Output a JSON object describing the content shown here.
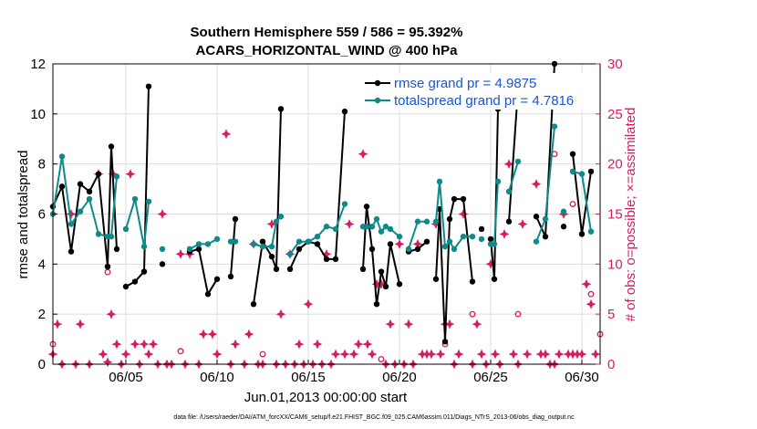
{
  "chart_data": {
    "type": "line",
    "title_line1": "Southern Hemisphere 559 / 586 = 95.392%",
    "title_line2": "ACARS_HORIZONTAL_WIND @ 400 hPa",
    "xlabel": "Jun.01,2013 00:00:00 start",
    "ylabel_left": "rmse and totalspread",
    "ylabel_right": "# of obs: o=possible; ×=assimilated",
    "xlim": [
      1,
      31
    ],
    "ylim_left": [
      0,
      12
    ],
    "ylim_right": [
      0,
      30
    ],
    "xticks": [
      5,
      10,
      15,
      20,
      25,
      30
    ],
    "xtick_labels": [
      "06/05",
      "06/10",
      "06/15",
      "06/20",
      "06/25",
      "06/30"
    ],
    "yticks_left": [
      0,
      2,
      4,
      6,
      8,
      10,
      12
    ],
    "yticks_right": [
      0,
      5,
      10,
      15,
      20,
      25,
      30
    ],
    "grid": true,
    "legend": {
      "position": "top-right",
      "entries": [
        "rmse grand pr = 4.9875",
        "totalspread grand pr = 4.7816"
      ]
    },
    "colors": {
      "rmse": "#000000",
      "spread": "#0f8a8a",
      "obs": "#d81b60",
      "right_axis": "#d81b60"
    },
    "series": [
      {
        "name": "rmse grand pr = 4.9875",
        "points": [
          [
            1.0,
            6.3
          ],
          [
            1.5,
            7.1
          ],
          [
            2.0,
            4.5
          ],
          [
            2.5,
            7.2
          ],
          [
            3.0,
            6.9
          ],
          [
            3.5,
            7.6
          ],
          [
            4.0,
            3.9
          ],
          [
            4.2,
            8.7
          ],
          [
            4.5,
            4.6
          ],
          [
            4.75,
            null
          ],
          [
            5.0,
            3.1
          ],
          [
            5.5,
            3.3
          ],
          [
            6.0,
            3.7
          ],
          [
            6.25,
            11.1
          ],
          [
            6.5,
            null
          ],
          [
            7.0,
            4.0
          ],
          [
            7.5,
            null
          ],
          [
            8.5,
            4.5
          ],
          [
            9.0,
            4.6
          ],
          [
            9.5,
            2.8
          ],
          [
            10.0,
            3.4
          ],
          [
            10.25,
            null
          ],
          [
            10.75,
            3.5
          ],
          [
            11.0,
            5.8
          ],
          [
            11.5,
            null
          ],
          [
            12.0,
            2.4
          ],
          [
            12.5,
            4.9
          ],
          [
            13.0,
            4.3
          ],
          [
            13.25,
            3.8
          ],
          [
            13.5,
            10.2
          ],
          [
            13.75,
            null
          ],
          [
            14.0,
            3.8
          ],
          [
            14.5,
            4.6
          ],
          [
            15.0,
            4.9
          ],
          [
            15.5,
            4.8
          ],
          [
            16.0,
            4.2
          ],
          [
            16.5,
            4.2
          ],
          [
            17.0,
            10.1
          ],
          [
            17.5,
            null
          ],
          [
            18.0,
            3.8
          ],
          [
            18.2,
            6.3
          ],
          [
            18.5,
            4.6
          ],
          [
            18.75,
            2.4
          ],
          [
            19.0,
            3.7
          ],
          [
            19.25,
            3.1
          ],
          [
            19.5,
            4.8
          ],
          [
            20.0,
            3.2
          ],
          [
            20.25,
            null
          ],
          [
            20.5,
            4.5
          ],
          [
            21.0,
            4.6
          ],
          [
            21.5,
            4.9
          ],
          [
            21.75,
            null
          ],
          [
            22.0,
            3.4
          ],
          [
            22.2,
            6.2
          ],
          [
            22.5,
            0.9
          ],
          [
            22.75,
            5.8
          ],
          [
            23.0,
            6.6
          ],
          [
            23.5,
            6.6
          ],
          [
            24.0,
            3.3
          ],
          [
            24.25,
            null
          ],
          [
            24.5,
            5.4
          ],
          [
            24.75,
            null
          ],
          [
            25.0,
            5.0
          ],
          [
            25.2,
            3.4
          ],
          [
            25.4,
            10.2
          ],
          [
            25.6,
            null
          ],
          [
            26.0,
            5.7
          ],
          [
            26.5,
            11.0
          ],
          [
            27.0,
            null
          ],
          [
            27.5,
            5.9
          ],
          [
            28.0,
            5.1
          ],
          [
            28.5,
            12.0
          ],
          [
            28.75,
            null
          ],
          [
            29.0,
            5.5
          ],
          [
            29.25,
            null
          ],
          [
            29.5,
            8.4
          ],
          [
            30.0,
            5.2
          ],
          [
            30.5,
            7.7
          ]
        ]
      },
      {
        "name": "totalspread grand pr = 4.7816",
        "points": [
          [
            1.0,
            6.0
          ],
          [
            1.5,
            8.3
          ],
          [
            2.0,
            5.6
          ],
          [
            2.5,
            6.1
          ],
          [
            3.0,
            6.6
          ],
          [
            3.5,
            5.2
          ],
          [
            4.0,
            5.1
          ],
          [
            4.2,
            5.1
          ],
          [
            4.5,
            7.5
          ],
          [
            4.75,
            null
          ],
          [
            5.0,
            5.4
          ],
          [
            5.5,
            6.6
          ],
          [
            6.0,
            4.7
          ],
          [
            6.25,
            6.5
          ],
          [
            6.5,
            null
          ],
          [
            7.0,
            4.6
          ],
          [
            7.5,
            null
          ],
          [
            8.5,
            4.6
          ],
          [
            9.0,
            4.8
          ],
          [
            9.5,
            4.8
          ],
          [
            10.0,
            5.0
          ],
          [
            10.25,
            null
          ],
          [
            10.75,
            4.9
          ],
          [
            11.0,
            4.9
          ],
          [
            11.5,
            null
          ],
          [
            12.0,
            4.8
          ],
          [
            12.5,
            4.7
          ],
          [
            13.0,
            4.7
          ],
          [
            13.25,
            5.7
          ],
          [
            13.5,
            5.9
          ],
          [
            13.75,
            null
          ],
          [
            14.0,
            4.4
          ],
          [
            14.5,
            4.9
          ],
          [
            15.0,
            4.9
          ],
          [
            15.5,
            5.1
          ],
          [
            16.0,
            5.5
          ],
          [
            16.5,
            5.4
          ],
          [
            17.0,
            6.4
          ],
          [
            17.5,
            null
          ],
          [
            18.0,
            5.5
          ],
          [
            18.2,
            5.5
          ],
          [
            18.5,
            5.5
          ],
          [
            18.75,
            5.8
          ],
          [
            19.0,
            5.3
          ],
          [
            19.25,
            5.5
          ],
          [
            19.5,
            5.4
          ],
          [
            20.0,
            5.1
          ],
          [
            20.25,
            null
          ],
          [
            20.5,
            4.6
          ],
          [
            21.0,
            5.7
          ],
          [
            21.5,
            5.7
          ],
          [
            21.75,
            null
          ],
          [
            22.0,
            5.7
          ],
          [
            22.2,
            7.3
          ],
          [
            22.5,
            4.7
          ],
          [
            22.75,
            4.9
          ],
          [
            23.0,
            4.6
          ],
          [
            23.5,
            5.1
          ],
          [
            24.0,
            5.1
          ],
          [
            24.25,
            null
          ],
          [
            24.5,
            5.0
          ],
          [
            24.75,
            null
          ],
          [
            25.0,
            4.8
          ],
          [
            25.2,
            4.8
          ],
          [
            25.4,
            7.3
          ],
          [
            25.6,
            null
          ],
          [
            26.0,
            6.9
          ],
          [
            26.5,
            8.1
          ],
          [
            27.0,
            null
          ],
          [
            27.5,
            4.9
          ],
          [
            28.0,
            5.8
          ],
          [
            28.5,
            9.5
          ],
          [
            28.75,
            null
          ],
          [
            29.0,
            6.1
          ],
          [
            29.25,
            null
          ],
          [
            29.5,
            7.7
          ],
          [
            30.0,
            7.6
          ],
          [
            30.5,
            5.3
          ]
        ]
      }
    ],
    "obs_possible": [
      [
        1.0,
        2
      ],
      [
        4.0,
        9.2
      ],
      [
        8.0,
        1.3
      ],
      [
        12.5,
        1
      ],
      [
        19.0,
        0.5
      ],
      [
        22.5,
        2
      ],
      [
        24.0,
        5
      ],
      [
        26.5,
        5
      ],
      [
        28.5,
        21
      ],
      [
        29.5,
        16
      ],
      [
        30.5,
        7
      ],
      [
        31.0,
        3
      ]
    ],
    "obs_assimilated": [
      [
        1.0,
        1
      ],
      [
        1.25,
        4
      ],
      [
        1.5,
        0
      ],
      [
        2.0,
        15
      ],
      [
        2.25,
        0
      ],
      [
        2.5,
        4
      ],
      [
        3.0,
        0
      ],
      [
        3.5,
        19
      ],
      [
        3.75,
        1
      ],
      [
        4.0,
        0.2
      ],
      [
        4.2,
        5
      ],
      [
        4.3,
        19
      ],
      [
        4.5,
        2
      ],
      [
        4.75,
        0
      ],
      [
        5.0,
        1
      ],
      [
        5.25,
        19
      ],
      [
        5.5,
        2
      ],
      [
        5.75,
        0
      ],
      [
        6.0,
        2
      ],
      [
        6.25,
        1
      ],
      [
        6.5,
        2
      ],
      [
        6.75,
        0
      ],
      [
        7.0,
        15
      ],
      [
        7.25,
        0
      ],
      [
        7.5,
        0
      ],
      [
        8.0,
        11
      ],
      [
        8.25,
        0
      ],
      [
        8.5,
        11
      ],
      [
        9.0,
        0
      ],
      [
        9.25,
        3
      ],
      [
        9.75,
        3
      ],
      [
        10.0,
        1
      ],
      [
        10.5,
        23
      ],
      [
        10.75,
        0
      ],
      [
        11.0,
        2
      ],
      [
        11.5,
        0
      ],
      [
        11.75,
        3
      ],
      [
        12.0,
        12
      ],
      [
        12.25,
        0
      ],
      [
        12.5,
        0
      ],
      [
        13.0,
        14
      ],
      [
        13.25,
        0
      ],
      [
        13.5,
        5
      ],
      [
        13.75,
        0
      ],
      [
        14.0,
        11
      ],
      [
        14.25,
        0
      ],
      [
        14.5,
        2
      ],
      [
        14.75,
        0
      ],
      [
        15.0,
        6
      ],
      [
        15.25,
        0
      ],
      [
        15.5,
        2
      ],
      [
        15.75,
        0
      ],
      [
        16.0,
        11
      ],
      [
        16.25,
        0
      ],
      [
        16.5,
        1
      ],
      [
        17.0,
        1
      ],
      [
        17.25,
        14
      ],
      [
        17.5,
        1
      ],
      [
        17.75,
        2
      ],
      [
        18.0,
        21
      ],
      [
        18.25,
        2
      ],
      [
        18.5,
        1
      ],
      [
        18.75,
        8
      ],
      [
        19.0,
        8
      ],
      [
        19.25,
        0
      ],
      [
        19.5,
        4
      ],
      [
        19.75,
        0
      ],
      [
        20.0,
        12
      ],
      [
        20.25,
        0
      ],
      [
        20.5,
        4
      ],
      [
        20.75,
        0
      ],
      [
        21.0,
        12
      ],
      [
        21.25,
        1
      ],
      [
        21.5,
        1
      ],
      [
        21.75,
        1
      ],
      [
        22.0,
        14
      ],
      [
        22.25,
        1
      ],
      [
        22.5,
        4
      ],
      [
        22.75,
        4
      ],
      [
        23.0,
        0
      ],
      [
        23.25,
        1
      ],
      [
        23.5,
        15
      ],
      [
        24.0,
        0
      ],
      [
        24.25,
        4
      ],
      [
        24.5,
        1
      ],
      [
        24.75,
        0
      ],
      [
        25.0,
        10
      ],
      [
        25.25,
        1
      ],
      [
        25.5,
        0
      ],
      [
        25.75,
        13
      ],
      [
        26.0,
        20
      ],
      [
        26.25,
        1
      ],
      [
        26.5,
        0
      ],
      [
        26.75,
        14
      ],
      [
        27.0,
        1
      ],
      [
        27.5,
        18
      ],
      [
        27.75,
        1
      ],
      [
        28.0,
        1
      ],
      [
        28.25,
        0
      ],
      [
        28.5,
        0
      ],
      [
        28.75,
        1
      ],
      [
        29.0,
        15
      ],
      [
        29.25,
        1
      ],
      [
        29.5,
        1
      ],
      [
        29.75,
        1
      ],
      [
        30.0,
        1
      ],
      [
        30.25,
        8
      ],
      [
        30.5,
        6
      ],
      [
        30.75,
        1
      ]
    ],
    "footnote": "data file: /Users/raeder/DAI/ATM_forcXX/CAM6_setup/f.e21.FHIST_BGC.f09_025.CAM6assim.011/Diags_NTrS_2013-06/obs_diag_output.nc"
  }
}
